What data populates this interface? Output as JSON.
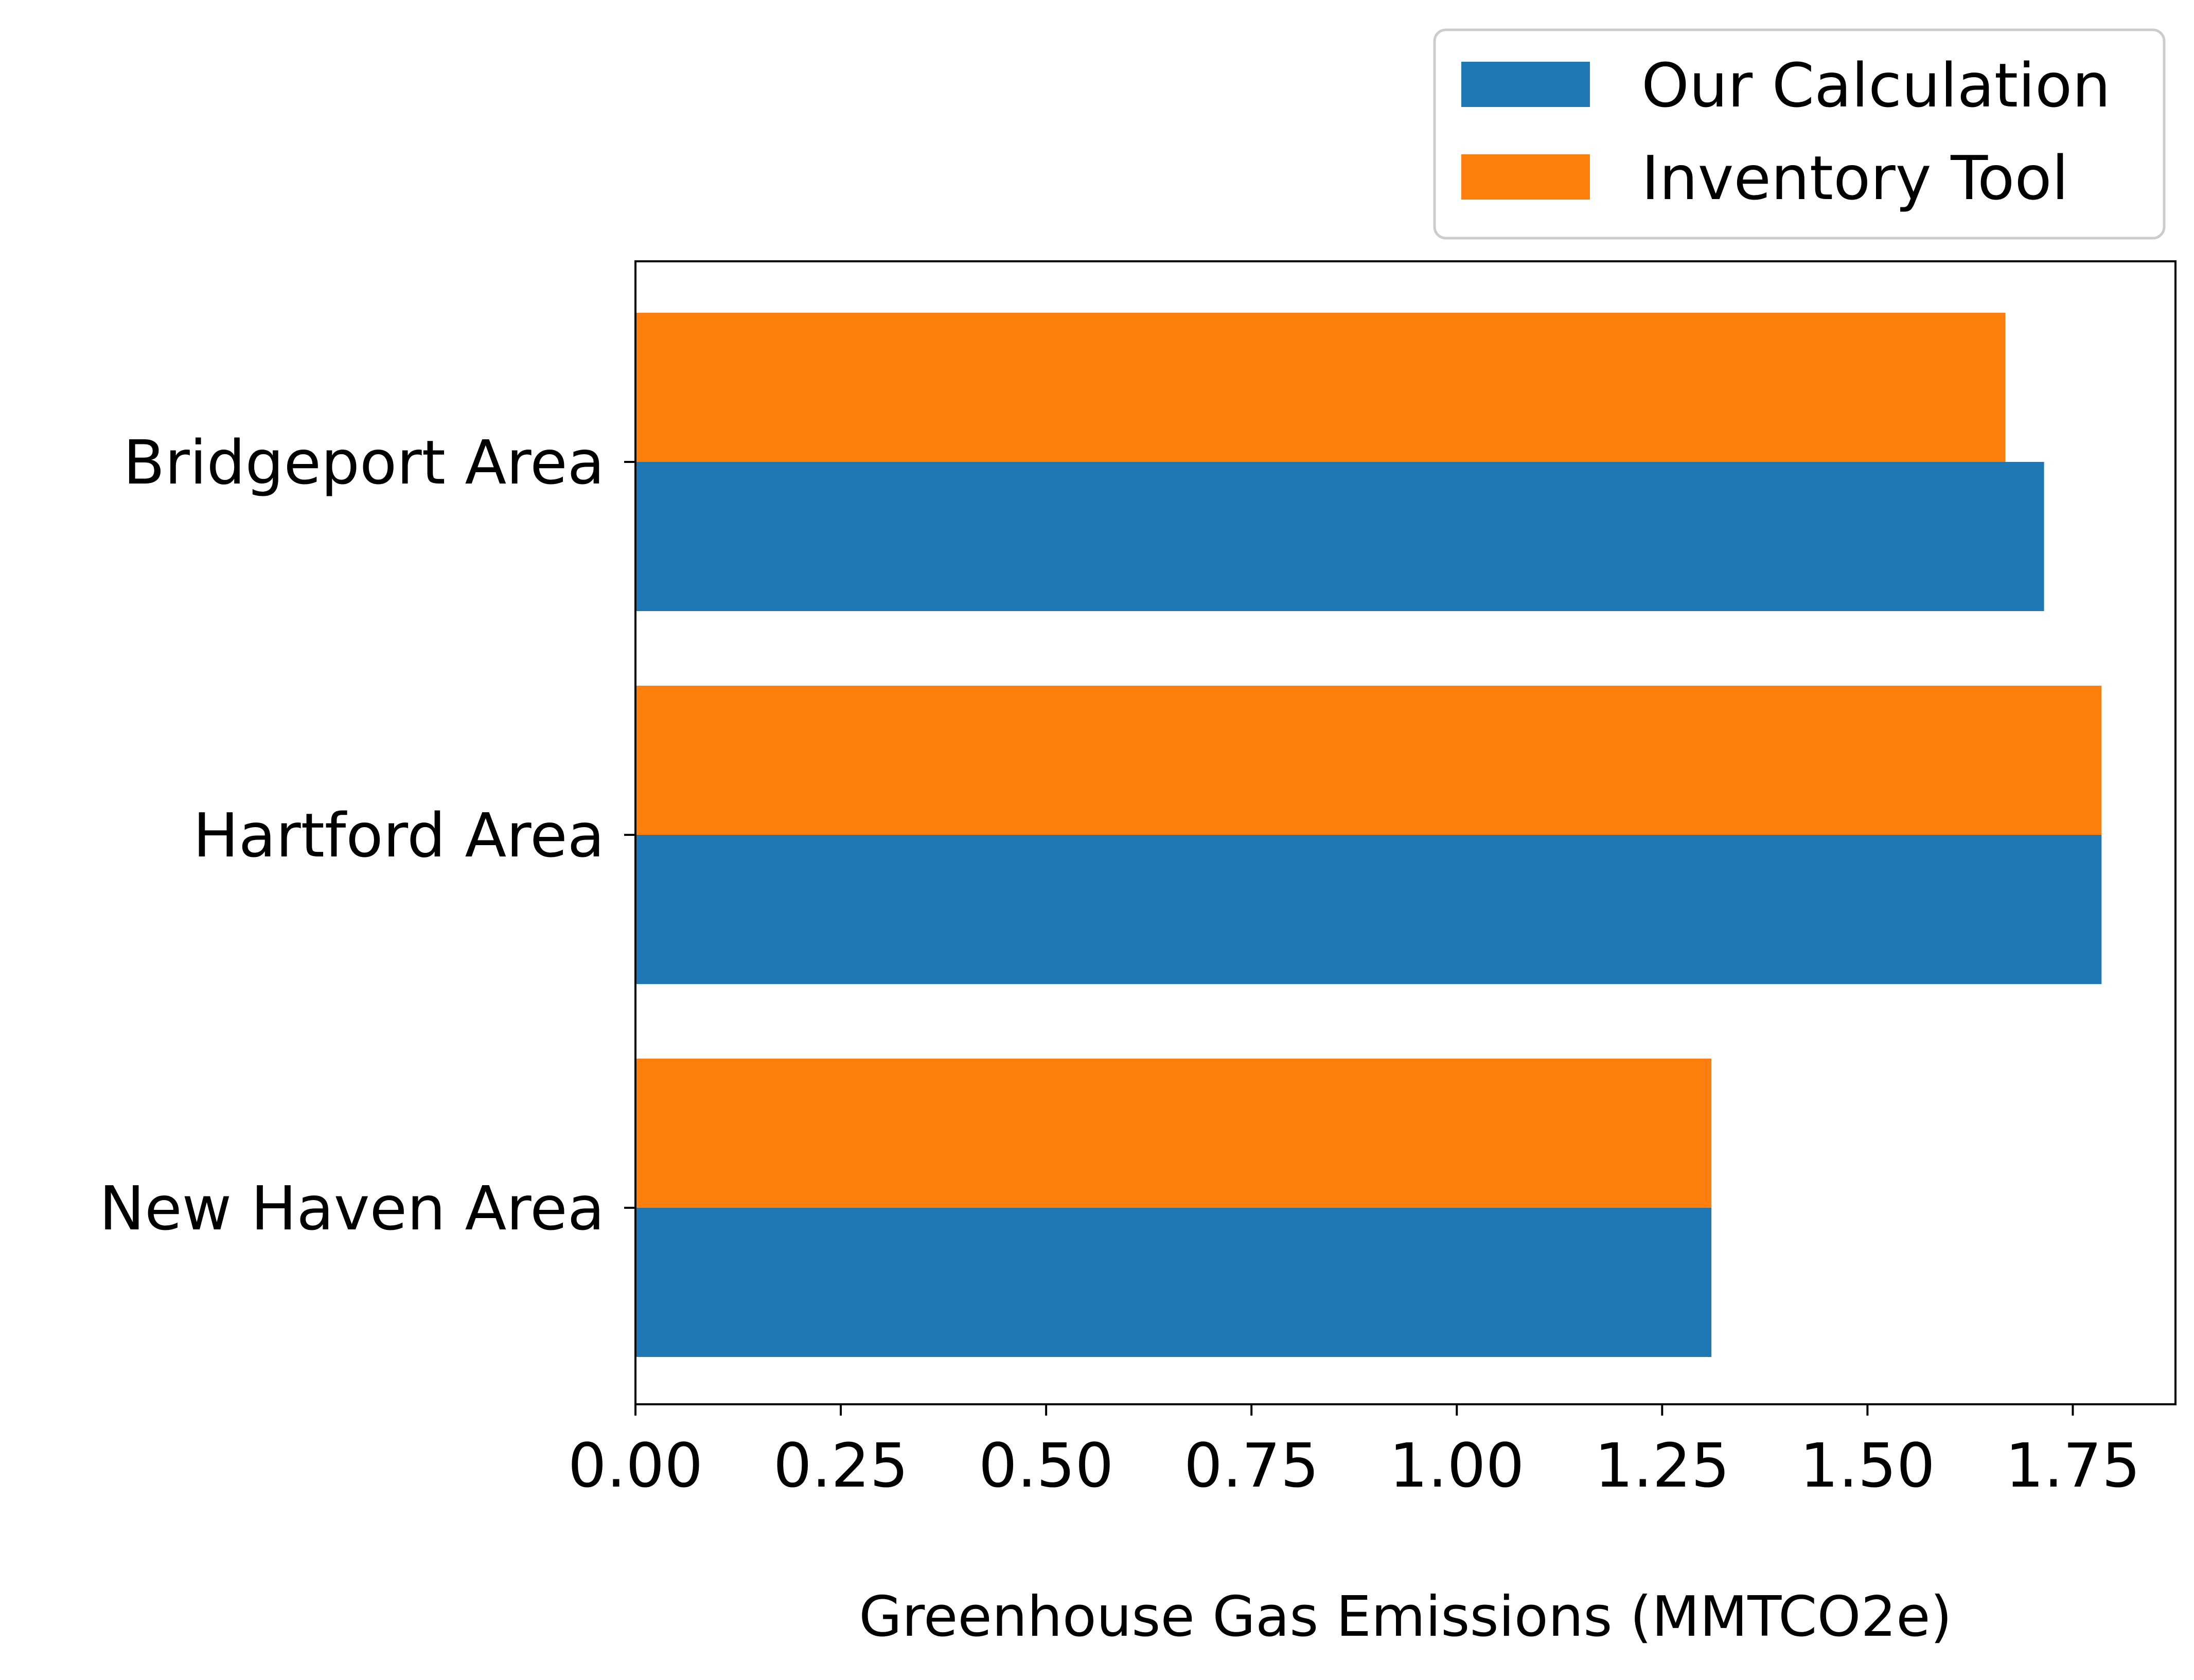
{
  "chart_data": {
    "type": "bar",
    "orientation": "horizontal",
    "categories": [
      "Bridgeport Area",
      "Hartford Area",
      "New Haven Area"
    ],
    "series": [
      {
        "name": "Our Calculation",
        "color": "#1f77b4",
        "values": [
          1.715,
          1.785,
          1.31
        ]
      },
      {
        "name": "Inventory Tool",
        "color": "#ff7f0e",
        "values": [
          1.668,
          1.785,
          1.31
        ]
      }
    ],
    "xlabel": "Greenhouse Gas Emissions (MMTCO2e)",
    "ylabel": "",
    "title": "",
    "xlim": [
      0,
      1.875
    ],
    "x_ticks": [
      "0.00",
      "0.25",
      "0.50",
      "0.75",
      "1.00",
      "1.25",
      "1.50",
      "1.75"
    ],
    "legend_position": "top-right, outside plot",
    "grid": false
  }
}
